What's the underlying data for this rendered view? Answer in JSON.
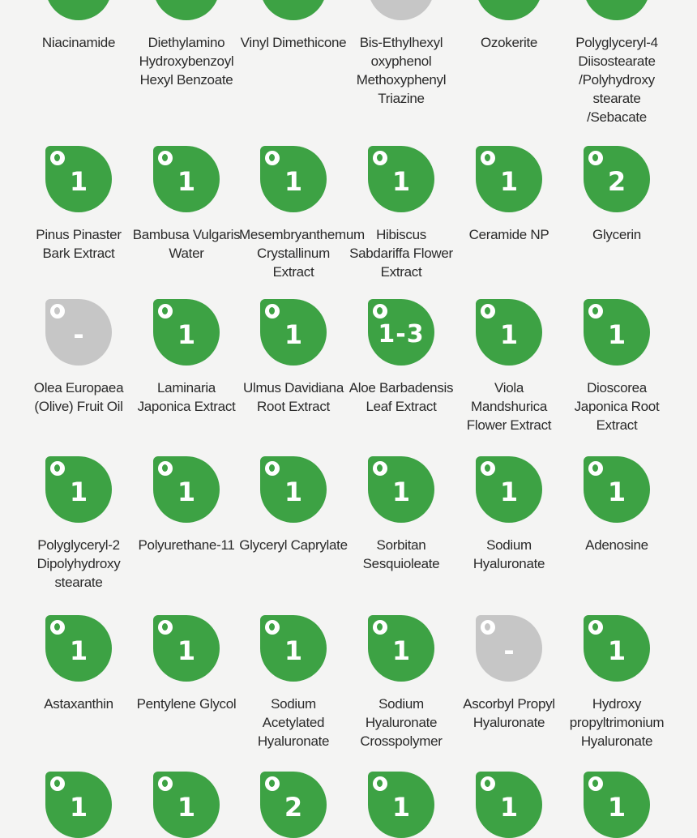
{
  "colors": {
    "safe": "#3da244",
    "unknown": "#c6c6c6",
    "background": "#f4f4f3",
    "text": "#2a2a2a"
  },
  "badge_icon": "ewg-leaf-icon",
  "ingredients": [
    {
      "name": "Niacinamide",
      "score": "",
      "color": "safe"
    },
    {
      "name": "Diethylamino Hydroxybenzoyl Hexyl Benzoate",
      "score": "",
      "color": "safe"
    },
    {
      "name": "Vinyl Dimethicone",
      "score": "",
      "color": "safe"
    },
    {
      "name": "Bis-Ethylhexyl oxyphenol Methoxyphenyl Triazine",
      "score": "",
      "color": "unknown"
    },
    {
      "name": "Ozokerite",
      "score": "",
      "color": "safe"
    },
    {
      "name": "Polyglyceryl-4 Diisostearate /Polyhydroxy stearate /Sebacate",
      "score": "",
      "color": "safe"
    },
    {
      "name": "Pinus Pinaster Bark Extract",
      "score": "1",
      "color": "safe"
    },
    {
      "name": "Bambusa Vulgaris Water",
      "score": "1",
      "color": "safe"
    },
    {
      "name": "Mesembryanthemum Crystallinum Extract",
      "score": "1",
      "color": "safe"
    },
    {
      "name": "Hibiscus Sabdariffa Flower Extract",
      "score": "1",
      "color": "safe"
    },
    {
      "name": "Ceramide NP",
      "score": "1",
      "color": "safe"
    },
    {
      "name": "Glycerin",
      "score": "2",
      "color": "safe"
    },
    {
      "name": "Olea Europaea (Olive) Fruit Oil",
      "score": "-",
      "color": "unknown"
    },
    {
      "name": "Laminaria Japonica Extract",
      "score": "1",
      "color": "safe"
    },
    {
      "name": "Ulmus Davidiana Root Extract",
      "score": "1",
      "color": "safe"
    },
    {
      "name": "Aloe Barbadensis Leaf Extract",
      "score": "1-3",
      "color": "safe"
    },
    {
      "name": "Viola Mandshurica Flower Extract",
      "score": "1",
      "color": "safe"
    },
    {
      "name": "Dioscorea Japonica Root Extract",
      "score": "1",
      "color": "safe"
    },
    {
      "name": "Polyglyceryl-2 Dipolyhydroxy stearate",
      "score": "1",
      "color": "safe"
    },
    {
      "name": "Polyurethane-11",
      "score": "1",
      "color": "safe"
    },
    {
      "name": "Glyceryl Caprylate",
      "score": "1",
      "color": "safe"
    },
    {
      "name": "Sorbitan Sesquioleate",
      "score": "1",
      "color": "safe"
    },
    {
      "name": "Sodium Hyaluronate",
      "score": "1",
      "color": "safe"
    },
    {
      "name": "Adenosine",
      "score": "1",
      "color": "safe"
    },
    {
      "name": "Astaxanthin",
      "score": "1",
      "color": "safe"
    },
    {
      "name": "Pentylene Glycol",
      "score": "1",
      "color": "safe"
    },
    {
      "name": "Sodium Acetylated Hyaluronate",
      "score": "1",
      "color": "safe"
    },
    {
      "name": "Sodium Hyaluronate Crosspolymer",
      "score": "1",
      "color": "safe"
    },
    {
      "name": "Ascorbyl Propyl Hyaluronate",
      "score": "-",
      "color": "unknown"
    },
    {
      "name": "Hydroxy propyltrimonium Hyaluronate",
      "score": "1",
      "color": "safe"
    },
    {
      "name": "",
      "score": "1",
      "color": "safe"
    },
    {
      "name": "",
      "score": "1",
      "color": "safe"
    },
    {
      "name": "",
      "score": "2",
      "color": "safe"
    },
    {
      "name": "",
      "score": "1",
      "color": "safe"
    },
    {
      "name": "",
      "score": "1",
      "color": "safe"
    },
    {
      "name": "",
      "score": "1",
      "color": "safe"
    }
  ]
}
